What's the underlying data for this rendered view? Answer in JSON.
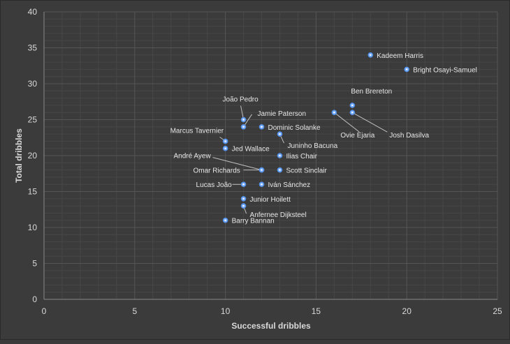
{
  "chart_data": {
    "type": "scatter",
    "xlabel": "Successful dribbles",
    "ylabel": "Total dribbles",
    "xlim": [
      0,
      25
    ],
    "ylim": [
      0,
      40
    ],
    "xticks": [
      0,
      5,
      10,
      15,
      20,
      25
    ],
    "yticks": [
      0,
      5,
      10,
      15,
      20,
      25,
      30,
      35,
      40
    ],
    "grid": true,
    "colors": {
      "background": "#3b3b3b",
      "marker": "#4f8fe6",
      "grid": "#555555",
      "text": "#d9d9d9"
    },
    "points": [
      {
        "label": "Kadeem Harris",
        "x": 18,
        "y": 34
      },
      {
        "label": "Bright Osayi-Samuel",
        "x": 20,
        "y": 32
      },
      {
        "label": "Ben Brereton",
        "x": 17,
        "y": 27
      },
      {
        "label": "Ovie Ejaria",
        "x": 16,
        "y": 26
      },
      {
        "label": "Josh Dasilva",
        "x": 17,
        "y": 26
      },
      {
        "label": "João Pedro",
        "x": 11,
        "y": 25
      },
      {
        "label": "Jamie Paterson",
        "x": 11,
        "y": 24
      },
      {
        "label": "Dominic Solanke",
        "x": 12,
        "y": 24
      },
      {
        "label": "Juninho Bacuna",
        "x": 13,
        "y": 23
      },
      {
        "label": "Marcus Tavernier",
        "x": 10,
        "y": 22
      },
      {
        "label": "Jed Wallace",
        "x": 10,
        "y": 21
      },
      {
        "label": "Ilias Chair",
        "x": 13,
        "y": 20
      },
      {
        "label": "André Ayew",
        "x": 12,
        "y": 18
      },
      {
        "label": "Omar Richards",
        "x": 12,
        "y": 18
      },
      {
        "label": "Scott Sinclair",
        "x": 13,
        "y": 18
      },
      {
        "label": "Lucas João",
        "x": 11,
        "y": 16
      },
      {
        "label": "Iván Sánchez",
        "x": 12,
        "y": 16
      },
      {
        "label": "Junior Hoilett",
        "x": 11,
        "y": 14
      },
      {
        "label": "Anfernee Dijksteel",
        "x": 11,
        "y": 13
      },
      {
        "label": "Barry Bannan",
        "x": 10,
        "y": 11
      }
    ]
  }
}
